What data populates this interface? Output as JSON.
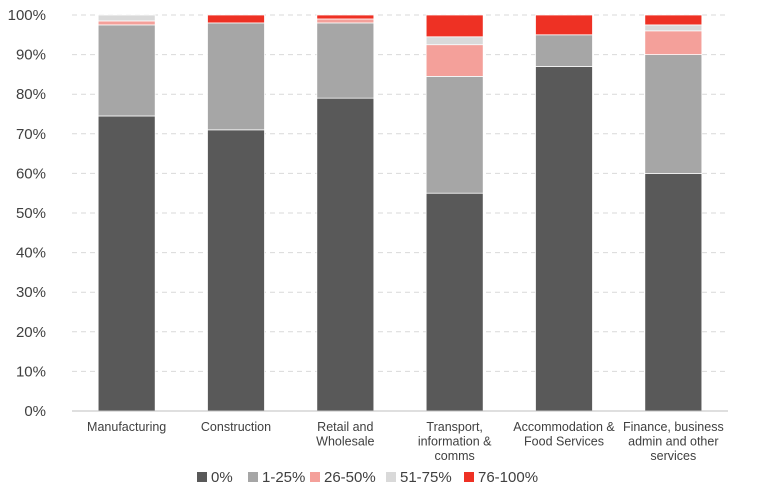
{
  "chart_data": {
    "type": "bar",
    "stacked": true,
    "categories": [
      [
        "Manufacturing"
      ],
      [
        "Construction"
      ],
      [
        "Retail and",
        "Wholesale"
      ],
      [
        "Transport,",
        "information &",
        "comms"
      ],
      [
        "Accommodation &",
        "Food Services"
      ],
      [
        "Finance, business",
        "admin and other",
        "services"
      ]
    ],
    "series": [
      {
        "name": "0%",
        "color": "#595959",
        "values": [
          74.5,
          71,
          79,
          55,
          87,
          60
        ]
      },
      {
        "name": "1-25%",
        "color": "#a6a6a6",
        "values": [
          23,
          27,
          19,
          29.5,
          8,
          30
        ]
      },
      {
        "name": "26-50%",
        "color": "#f4a09a",
        "values": [
          1,
          0,
          1,
          8,
          0,
          6
        ]
      },
      {
        "name": "51-75%",
        "color": "#d9d9d9",
        "values": [
          1.5,
          0,
          0,
          2,
          0,
          1.5
        ]
      },
      {
        "name": "76-100%",
        "color": "#ee3124",
        "values": [
          0,
          2,
          1,
          5.5,
          5,
          2.5
        ]
      }
    ],
    "ylim": [
      0,
      100
    ],
    "yticks": [
      "0%",
      "10%",
      "20%",
      "30%",
      "40%",
      "50%",
      "60%",
      "70%",
      "80%",
      "90%",
      "100%"
    ],
    "grid": true,
    "legend_position": "bottom"
  }
}
